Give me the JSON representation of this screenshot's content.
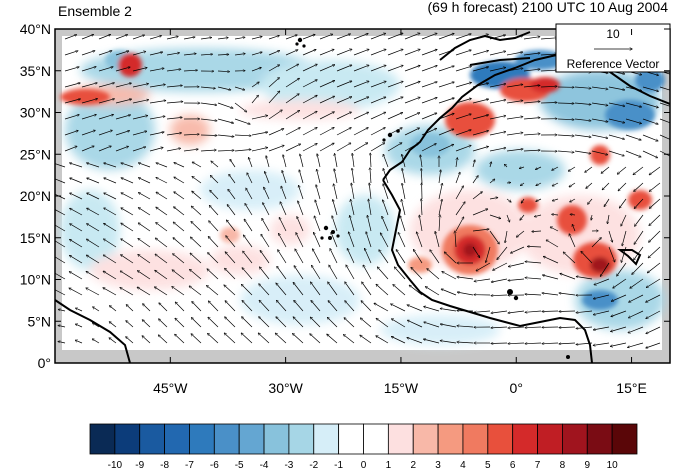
{
  "header": {
    "left": "Ensemble 2",
    "right": "(69 h forecast) 2100 UTC 10 Aug 2004"
  },
  "axes": {
    "lat_range": [
      0,
      40
    ],
    "lon_range": [
      -60,
      20
    ],
    "lat_ticks": [
      {
        "value": 40,
        "label": "40°N"
      },
      {
        "value": 35,
        "label": "35°N"
      },
      {
        "value": 30,
        "label": "30°N"
      },
      {
        "value": 25,
        "label": "25°N"
      },
      {
        "value": 20,
        "label": "20°N"
      },
      {
        "value": 15,
        "label": "15°N"
      },
      {
        "value": 10,
        "label": "10°N"
      },
      {
        "value": 5,
        "label": "5°N"
      },
      {
        "value": 0,
        "label": "0°"
      }
    ],
    "lon_ticks": [
      {
        "value": -45,
        "label": "45°W"
      },
      {
        "value": -30,
        "label": "30°W"
      },
      {
        "value": -15,
        "label": "15°W"
      },
      {
        "value": 0,
        "label": "0°"
      },
      {
        "value": 15,
        "label": "15°E"
      }
    ]
  },
  "reference_vector": {
    "magnitude": "10",
    "label": "Reference Vector"
  },
  "colorbar": {
    "labels": [
      "-10",
      "-9",
      "-8",
      "-7",
      "-6",
      "-5",
      "-4",
      "-3",
      "-2",
      "-1",
      "0",
      "1",
      "2",
      "3",
      "4",
      "5",
      "6",
      "7",
      "8",
      "9",
      "10"
    ],
    "colors": [
      "#0a2a55",
      "#0c3c7a",
      "#1a5aa0",
      "#2268b0",
      "#2e7abc",
      "#4a90c8",
      "#64a6d2",
      "#88c2dc",
      "#a6d6e6",
      "#d6eef8",
      "#ffffff",
      "#ffffff",
      "#fde0e0",
      "#f8b8a8",
      "#f59a80",
      "#f07a60",
      "#e8503c",
      "#d42a2a",
      "#c01e24",
      "#a0141e",
      "#7a0c14",
      "#5a0608"
    ]
  },
  "colors": {
    "land": "#c8c8c8",
    "coast": "#000000",
    "vector": "#000000"
  }
}
